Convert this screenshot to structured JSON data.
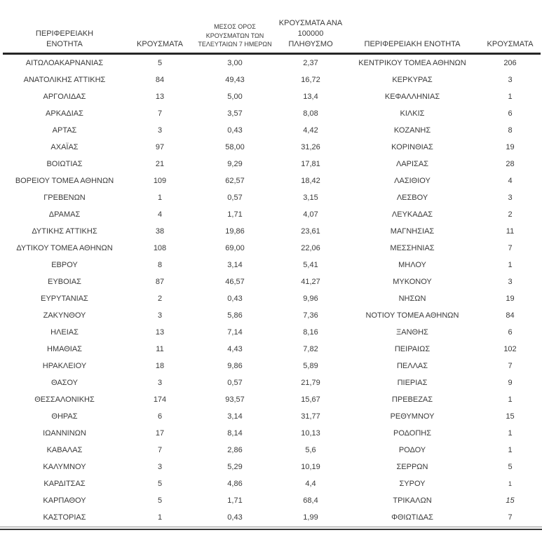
{
  "page": {
    "background_color": "#ffffff",
    "text_color": "#3a3a3a",
    "header_rule_color": "#262626",
    "bottom_rule_color": "#3a3a3a"
  },
  "chart_data": [
    {
      "type": "table",
      "title": "",
      "columns": [
        "ΠΕΡΙΦΕΡΕΙΑΚΗ ΕΝΟΤΗΤΑ",
        "ΚΡΟΥΣΜΑΤΑ",
        "ΜΕΣΟΣ ΟΡΟΣ ΚΡΟΥΣΜΑΤΩΝ ΤΩΝ ΤΕΛΕΥΤΑΙΩΝ 7 ΗΜΕΡΩΝ",
        "ΚΡΟΥΣΜΑΤΑ ΑΝΑ 100000 ΠΛΗΘΥΣΜΟ"
      ],
      "rows": [
        [
          "ΑΙΤΩΛΟΑΚΑΡΝΑΝΙΑΣ",
          "5",
          "3,00",
          "2,37"
        ],
        [
          "ΑΝΑΤΟΛΙΚΗΣ ΑΤΤΙΚΗΣ",
          "84",
          "49,43",
          "16,72"
        ],
        [
          "ΑΡΓΟΛΙΔΑΣ",
          "13",
          "5,00",
          "13,4"
        ],
        [
          "ΑΡΚΑΔΙΑΣ",
          "7",
          "3,57",
          "8,08"
        ],
        [
          "ΑΡΤΑΣ",
          "3",
          "0,43",
          "4,42"
        ],
        [
          "ΑΧΑΪΑΣ",
          "97",
          "58,00",
          "31,26"
        ],
        [
          "ΒΟΙΩΤΙΑΣ",
          "21",
          "9,29",
          "17,81"
        ],
        [
          "ΒΟΡΕΙΟΥ ΤΟΜΕΑ ΑΘΗΝΩΝ",
          "109",
          "62,57",
          "18,42"
        ],
        [
          "ΓΡΕΒΕΝΩΝ",
          "1",
          "0,57",
          "3,15"
        ],
        [
          "ΔΡΑΜΑΣ",
          "4",
          "1,71",
          "4,07"
        ],
        [
          "ΔΥΤΙΚΗΣ ΑΤΤΙΚΗΣ",
          "38",
          "19,86",
          "23,61"
        ],
        [
          "ΔΥΤΙΚΟΥ ΤΟΜΕΑ ΑΘΗΝΩΝ",
          "108",
          "69,00",
          "22,06"
        ],
        [
          "ΕΒΡΟΥ",
          "8",
          "3,14",
          "5,41"
        ],
        [
          "ΕΥΒΟΙΑΣ",
          "87",
          "46,57",
          "41,27"
        ],
        [
          "ΕΥΡΥΤΑΝΙΑΣ",
          "2",
          "0,43",
          "9,96"
        ],
        [
          "ΖΑΚΥΝΘΟΥ",
          "3",
          "5,86",
          "7,36"
        ],
        [
          "ΗΛΕΙΑΣ",
          "13",
          "7,14",
          "8,16"
        ],
        [
          "ΗΜΑΘΙΑΣ",
          "11",
          "4,43",
          "7,82"
        ],
        [
          "ΗΡΑΚΛΕΙΟΥ",
          "18",
          "9,86",
          "5,89"
        ],
        [
          "ΘΑΣΟΥ",
          "3",
          "0,57",
          "21,79"
        ],
        [
          "ΘΕΣΣΑΛΟΝΙΚΗΣ",
          "174",
          "93,57",
          "15,67"
        ],
        [
          "ΘΗΡΑΣ",
          "6",
          "3,14",
          "31,77"
        ],
        [
          "ΙΩΑΝΝΙΝΩΝ",
          "17",
          "8,14",
          "10,13"
        ],
        [
          "ΚΑΒΑΛΑΣ",
          "7",
          "2,86",
          "5,6"
        ],
        [
          "ΚΑΛΥΜΝΟΥ",
          "3",
          "5,29",
          "10,19"
        ],
        [
          "ΚΑΡΔΙΤΣΑΣ",
          "5",
          "4,86",
          "4,4"
        ],
        [
          "ΚΑΡΠΑΘΟΥ",
          "5",
          "1,71",
          "68,4"
        ],
        [
          "ΚΑΣΤΟΡΙΑΣ",
          "1",
          "0,43",
          "1,99"
        ]
      ]
    },
    {
      "type": "table",
      "title": "",
      "columns": [
        "ΠΕΡΙΦΕΡΕΙΑΚΗ ΕΝΟΤΗΤΑ",
        "ΚΡΟΥΣΜΑΤΑ"
      ],
      "rows": [
        [
          "ΚΕΝΤΡΙΚΟΥ ΤΟΜΕΑ ΑΘΗΝΩΝ",
          "206"
        ],
        [
          "ΚΕΡΚΥΡΑΣ",
          "3"
        ],
        [
          "ΚΕΦΑΛΛΗΝΙΑΣ",
          "1"
        ],
        [
          "ΚΙΛΚΙΣ",
          "6"
        ],
        [
          "ΚΟΖΑΝΗΣ",
          "8"
        ],
        [
          "ΚΟΡΙΝΘΙΑΣ",
          "19"
        ],
        [
          "ΛΑΡΙΣΑΣ",
          "28"
        ],
        [
          "ΛΑΣΙΘΙΟΥ",
          "4"
        ],
        [
          "ΛΕΣΒΟΥ",
          "3"
        ],
        [
          "ΛΕΥΚΑΔΑΣ",
          "2"
        ],
        [
          "ΜΑΓΝΗΣΙΑΣ",
          "11"
        ],
        [
          "ΜΕΣΣΗΝΙΑΣ",
          "7"
        ],
        [
          "ΜΗΛΟΥ",
          "1"
        ],
        [
          "ΜΥΚΟΝΟΥ",
          "3"
        ],
        [
          "ΝΗΣΩΝ",
          "19"
        ],
        [
          "ΝΟΤΙΟΥ ΤΟΜΕΑ ΑΘΗΝΩΝ",
          "84"
        ],
        [
          "ΞΑΝΘΗΣ",
          "6"
        ],
        [
          "ΠΕΙΡΑΙΩΣ",
          "102"
        ],
        [
          "ΠΕΛΛΑΣ",
          "7"
        ],
        [
          "ΠΙΕΡΙΑΣ",
          "9"
        ],
        [
          "ΠΡΕΒΕΖΑΣ",
          "1"
        ],
        [
          "ΡΕΘΥΜΝΟΥ",
          "15"
        ],
        [
          "ΡΟΔΟΠΗΣ",
          "1"
        ],
        [
          "ΡΟΔΟΥ",
          "1"
        ],
        [
          "ΣΕΡΡΩΝ",
          "5"
        ],
        [
          "ΣΥΡΟΥ",
          "1"
        ],
        [
          "ΤΡΙΚΑΛΩΝ",
          "15"
        ],
        [
          "ΦΘΙΩΤΙΔΑΣ",
          "7"
        ]
      ],
      "value_styles": {
        "25": "small",
        "26": "italic"
      }
    }
  ]
}
